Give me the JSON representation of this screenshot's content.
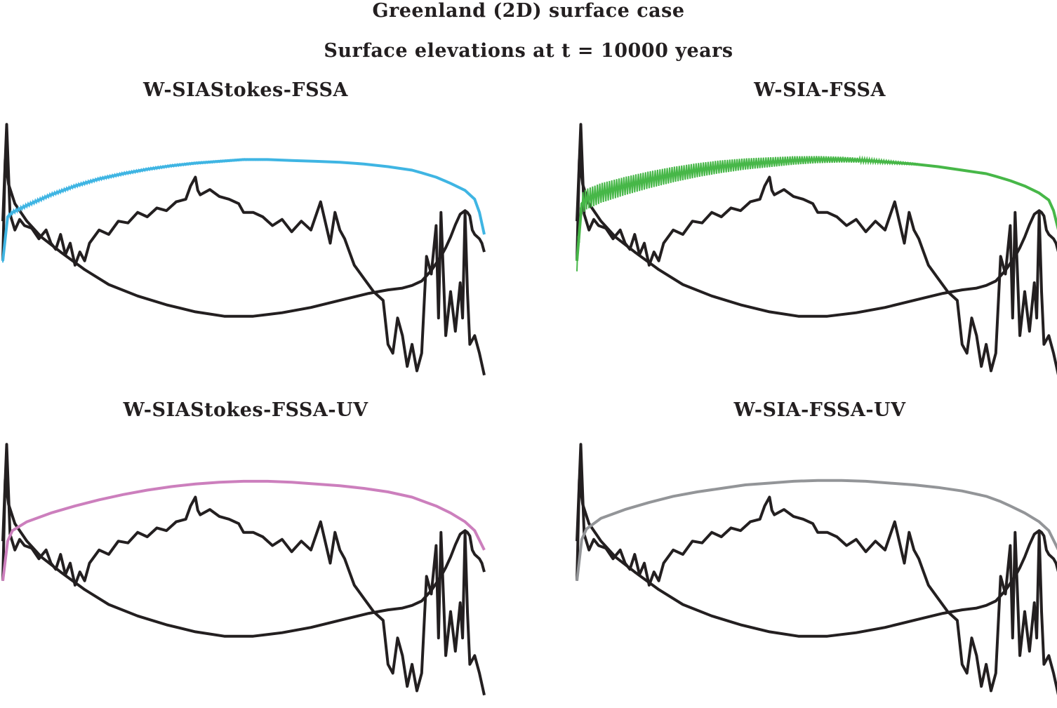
{
  "figure": {
    "title": "Greenland (2D) surface case",
    "subtitle": "Surface elevations at t = 10000 years"
  },
  "colors": {
    "reference": "#231f20",
    "W-SIAStokes-FSSA": "#3fb5e3",
    "W-SIA-FSSA": "#47b748",
    "W-SIAStokes-FSSA-UV": "#cc7fbd",
    "W-SIA-FSSA-UV": "#939598"
  },
  "chart_data": {
    "type": "line",
    "x_range": [
      0,
      1
    ],
    "grid": false,
    "axes_visible": false,
    "reference": {
      "surface": {
        "x": [
          0.0,
          0.005,
          0.012,
          0.025,
          0.05,
          0.08,
          0.12,
          0.17,
          0.22,
          0.28,
          0.34,
          0.4,
          0.46,
          0.52,
          0.58,
          0.64,
          0.7,
          0.76,
          0.8,
          0.83,
          0.85,
          0.87,
          0.88,
          0.89,
          0.9,
          0.91,
          0.92,
          0.93,
          0.94,
          0.95,
          0.96,
          0.965,
          0.97,
          0.975,
          0.98,
          0.99,
          0.995,
          1.0
        ],
        "y": [
          -0.25,
          0.9,
          0.62,
          0.4,
          0.2,
          0.02,
          -0.15,
          -0.35,
          -0.52,
          -0.65,
          -0.75,
          -0.83,
          -0.88,
          -0.88,
          -0.84,
          -0.78,
          -0.7,
          -0.62,
          -0.58,
          -0.56,
          -0.53,
          -0.48,
          -0.42,
          -0.36,
          -0.28,
          -0.2,
          -0.1,
          0.02,
          0.16,
          0.28,
          0.32,
          0.3,
          0.26,
          0.1,
          0.05,
          0.0,
          -0.05,
          -0.15
        ]
      },
      "bed": {
        "x": [
          0.0,
          0.008,
          0.015,
          0.025,
          0.035,
          0.045,
          0.06,
          0.075,
          0.09,
          0.1,
          0.11,
          0.12,
          0.13,
          0.14,
          0.15,
          0.16,
          0.17,
          0.18,
          0.2,
          0.22,
          0.24,
          0.26,
          0.28,
          0.3,
          0.32,
          0.34,
          0.36,
          0.38,
          0.39,
          0.4,
          0.405,
          0.41,
          0.43,
          0.45,
          0.47,
          0.49,
          0.5,
          0.52,
          0.54,
          0.56,
          0.58,
          0.6,
          0.62,
          0.64,
          0.66,
          0.68,
          0.69,
          0.7,
          0.71,
          0.72,
          0.73,
          0.75,
          0.77,
          0.79,
          0.8,
          0.81,
          0.82,
          0.83,
          0.84,
          0.85,
          0.86,
          0.87,
          0.88,
          0.89,
          0.9,
          0.905,
          0.91,
          0.915,
          0.92,
          0.93,
          0.94,
          0.95,
          0.955,
          0.96,
          0.965,
          0.97,
          0.98,
          0.99,
          1.0
        ],
        "y": [
          0.2,
          1.3,
          0.28,
          0.1,
          0.22,
          0.15,
          0.12,
          0.0,
          0.1,
          -0.05,
          -0.12,
          0.05,
          -0.18,
          -0.05,
          -0.3,
          -0.15,
          -0.25,
          -0.05,
          0.1,
          0.05,
          0.2,
          0.18,
          0.3,
          0.25,
          0.35,
          0.32,
          0.42,
          0.45,
          0.6,
          0.7,
          0.55,
          0.5,
          0.56,
          0.48,
          0.45,
          0.4,
          0.3,
          0.3,
          0.25,
          0.15,
          0.22,
          0.08,
          0.2,
          0.1,
          0.42,
          -0.05,
          0.3,
          0.1,
          0.0,
          -0.15,
          -0.3,
          -0.45,
          -0.6,
          -0.7,
          -1.2,
          -1.3,
          -0.9,
          -1.1,
          -1.45,
          -1.2,
          -1.5,
          -1.3,
          -0.2,
          -0.4,
          0.15,
          -0.9,
          0.3,
          -0.4,
          -1.1,
          -0.6,
          -1.05,
          -0.5,
          -0.9,
          0.3,
          -0.6,
          -1.2,
          -1.1,
          -1.3,
          -1.55
        ]
      }
    },
    "panels": [
      {
        "title": "W-SIAStokes-FSSA",
        "series_name": "W-SIAStokes-FSSA",
        "surface": {
          "x": [
            0.0,
            0.01,
            0.02,
            0.05,
            0.1,
            0.15,
            0.2,
            0.25,
            0.3,
            0.35,
            0.4,
            0.45,
            0.5,
            0.55,
            0.6,
            0.65,
            0.7,
            0.75,
            0.8,
            0.85,
            0.87,
            0.9,
            0.93,
            0.96,
            0.98,
            0.99,
            1.0
          ],
          "y": [
            -0.25,
            0.25,
            0.3,
            0.38,
            0.5,
            0.6,
            0.68,
            0.74,
            0.79,
            0.83,
            0.86,
            0.88,
            0.9,
            0.9,
            0.89,
            0.88,
            0.87,
            0.85,
            0.82,
            0.78,
            0.75,
            0.7,
            0.63,
            0.55,
            0.45,
            0.3,
            0.05
          ]
        },
        "oscillation": 0.02
      },
      {
        "title": "W-SIA-FSSA",
        "series_name": "W-SIA-FSSA",
        "surface": {
          "x": [
            0.0,
            0.01,
            0.02,
            0.05,
            0.1,
            0.15,
            0.2,
            0.25,
            0.3,
            0.35,
            0.4,
            0.45,
            0.5,
            0.55,
            0.6,
            0.65,
            0.7,
            0.75,
            0.8,
            0.85,
            0.87,
            0.9,
            0.93,
            0.96,
            0.98,
            0.99,
            1.0
          ],
          "y": [
            -0.25,
            0.4,
            0.45,
            0.52,
            0.6,
            0.67,
            0.73,
            0.78,
            0.82,
            0.85,
            0.87,
            0.89,
            0.9,
            0.9,
            0.89,
            0.87,
            0.85,
            0.82,
            0.78,
            0.74,
            0.71,
            0.66,
            0.6,
            0.52,
            0.44,
            0.32,
            0.1
          ]
        },
        "oscillation": 0.12
      },
      {
        "title": "W-SIAStokes-FSSA-UV",
        "series_name": "W-SIAStokes-FSSA-UV",
        "surface": {
          "x": [
            0.0,
            0.01,
            0.02,
            0.05,
            0.1,
            0.15,
            0.2,
            0.25,
            0.3,
            0.35,
            0.4,
            0.45,
            0.5,
            0.55,
            0.6,
            0.65,
            0.7,
            0.75,
            0.8,
            0.85,
            0.88,
            0.9,
            0.93,
            0.96,
            0.98,
            1.0
          ],
          "y": [
            -0.25,
            0.2,
            0.32,
            0.42,
            0.52,
            0.6,
            0.67,
            0.73,
            0.78,
            0.82,
            0.85,
            0.87,
            0.88,
            0.88,
            0.87,
            0.85,
            0.83,
            0.8,
            0.76,
            0.7,
            0.64,
            0.6,
            0.52,
            0.42,
            0.32,
            0.1
          ]
        },
        "oscillation": 0
      },
      {
        "title": "W-SIA-FSSA-UV",
        "series_name": "W-SIA-FSSA-UV",
        "surface": {
          "x": [
            0.0,
            0.01,
            0.02,
            0.05,
            0.1,
            0.15,
            0.2,
            0.25,
            0.3,
            0.35,
            0.4,
            0.45,
            0.5,
            0.55,
            0.6,
            0.65,
            0.7,
            0.75,
            0.8,
            0.85,
            0.88,
            0.9,
            0.93,
            0.96,
            0.98,
            1.0
          ],
          "y": [
            -0.25,
            0.22,
            0.34,
            0.46,
            0.56,
            0.64,
            0.71,
            0.76,
            0.8,
            0.84,
            0.86,
            0.88,
            0.89,
            0.89,
            0.88,
            0.86,
            0.84,
            0.81,
            0.77,
            0.71,
            0.65,
            0.6,
            0.52,
            0.42,
            0.32,
            0.1
          ]
        },
        "oscillation": 0
      }
    ]
  }
}
